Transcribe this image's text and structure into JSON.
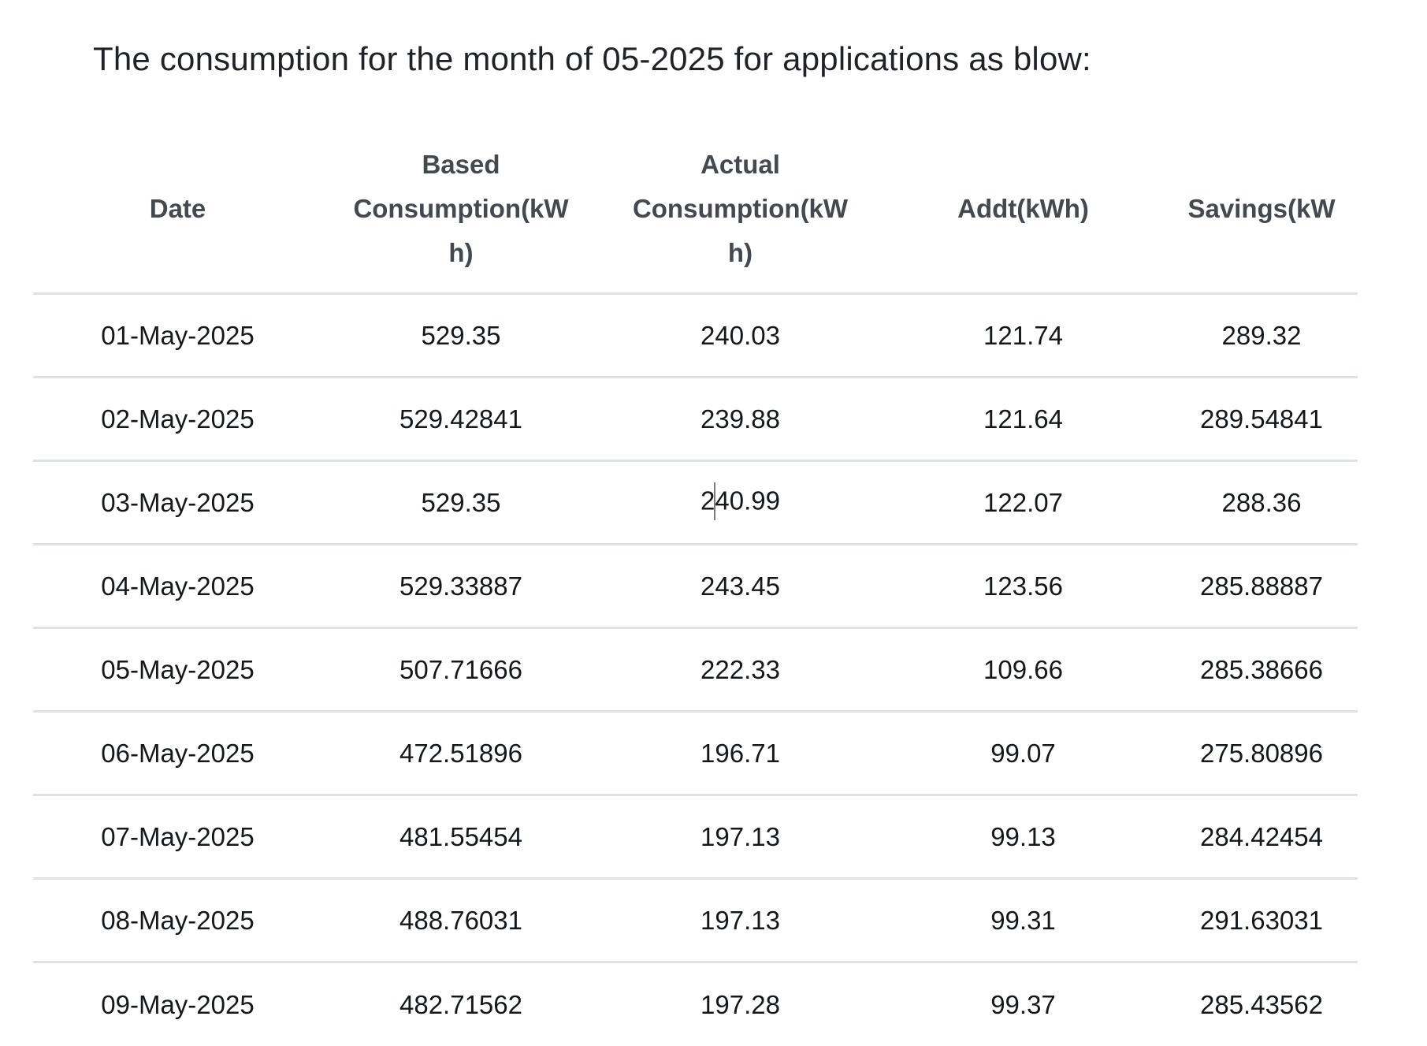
{
  "page": {
    "title": "The consumption for the month of 05-2025 for applications as blow:"
  },
  "chart_data": {
    "type": "table",
    "title": "The consumption for the month of 05-2025 for applications as blow:",
    "columns": [
      "Date",
      "Based Consumption(kWh)",
      "Actual Consumption(kWh)",
      "Addt(kWh)",
      "Savings(kW"
    ],
    "column_display": [
      "Date",
      "Based\nConsumption(kW\nh)",
      "Actual\nConsumption(kW\nh)",
      "Addt(kWh)",
      "Savings(kW"
    ],
    "rows": [
      [
        "01-May-2025",
        "529.35",
        "240.03",
        "121.74",
        "289.32"
      ],
      [
        "02-May-2025",
        "529.42841",
        "239.88",
        "121.64",
        "289.54841"
      ],
      [
        "03-May-2025",
        "529.35",
        "240.99",
        "122.07",
        "288.36"
      ],
      [
        "04-May-2025",
        "529.33887",
        "243.45",
        "123.56",
        "285.88887"
      ],
      [
        "05-May-2025",
        "507.71666",
        "222.33",
        "109.66",
        "285.38666"
      ],
      [
        "06-May-2025",
        "472.51896",
        "196.71",
        "99.07",
        "275.80896"
      ],
      [
        "07-May-2025",
        "481.55454",
        "197.13",
        "99.13",
        "284.42454"
      ],
      [
        "08-May-2025",
        "488.76031",
        "197.13",
        "99.31",
        "291.63031"
      ],
      [
        "09-May-2025",
        "482.71562",
        "197.28",
        "99.37",
        "285.43562"
      ]
    ]
  },
  "cursor": {
    "row_index": 2,
    "col_index": 2,
    "char_offset": 1
  },
  "colors": {
    "background": "#ffffff",
    "title_text": "#1f2328",
    "header_text": "#43494e",
    "body_text": "#15181b",
    "row_border": "#dee2e6",
    "text_cursor": "#7a7a7a"
  }
}
